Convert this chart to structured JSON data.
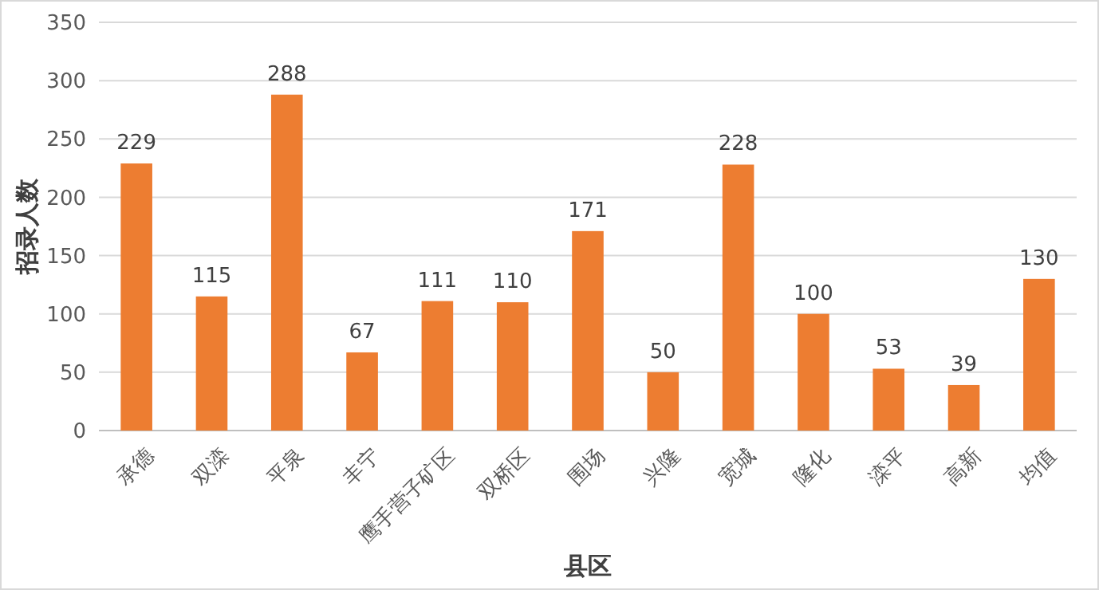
{
  "chart_data": {
    "type": "bar",
    "xlabel": "县区",
    "ylabel": "招录人数",
    "categories": [
      "承德",
      "双滦",
      "平泉",
      "丰宁",
      "鹰手营子矿区",
      "双桥区",
      "围场",
      "兴隆",
      "宽城",
      "隆化",
      "滦平",
      "高新",
      "均值"
    ],
    "values": [
      229,
      115,
      288,
      67,
      111,
      110,
      171,
      50,
      228,
      100,
      53,
      39,
      130
    ],
    "color": "#ed7d31",
    "ylim": [
      0,
      350
    ],
    "yticks": [
      0,
      50,
      100,
      150,
      200,
      250,
      300,
      350
    ],
    "grid": "y",
    "data_labels": true
  }
}
